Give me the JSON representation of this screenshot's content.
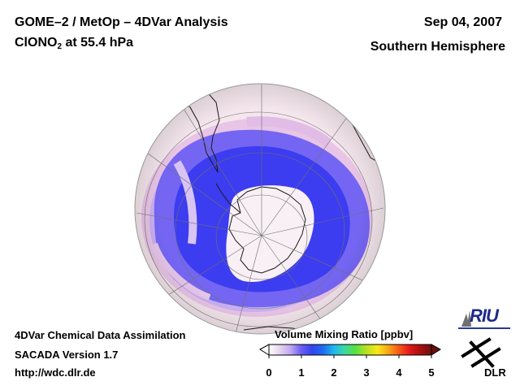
{
  "header": {
    "title": "GOME–2 / MetOp – 4DVar Analysis",
    "species_main": "ClONO",
    "species_sub": "2",
    "level": "at 55.4 hPa",
    "date": "Sep 04, 2007",
    "region": "Southern Hemisphere"
  },
  "footer": {
    "system": "4DVar Chemical Data Assimilation",
    "version": "SACADA Version 1.7",
    "url": "http://wdc.dlr.de"
  },
  "colorbar": {
    "title": "Volume Mixing Ratio [ppbv]",
    "ticks": [
      "0",
      "1",
      "2",
      "3",
      "4",
      "5"
    ],
    "min": 0,
    "max": 5,
    "stops": [
      "#ffffff",
      "#e6d4ee",
      "#c0a8f2",
      "#6a5cf0",
      "#3344ee",
      "#1e6cf0",
      "#20b8f0",
      "#3cd8a0",
      "#58e040",
      "#b8e020",
      "#f8e818",
      "#f8a818",
      "#f85818",
      "#e01818",
      "#a81010",
      "#701010"
    ],
    "below_color": "#ffffff",
    "above_color": "#6a1010"
  },
  "logos": {
    "riu": "RIU",
    "dlr": "DLR"
  },
  "map": {
    "projection": "orthographic, south pole view",
    "ocean_background": "#f4e6ec",
    "field_colors": {
      "low": "#f8f0f4",
      "pink": "#e4bce0",
      "lilac": "#b8a0f0",
      "violet": "#7060f0",
      "blue": "#3838f0"
    }
  }
}
